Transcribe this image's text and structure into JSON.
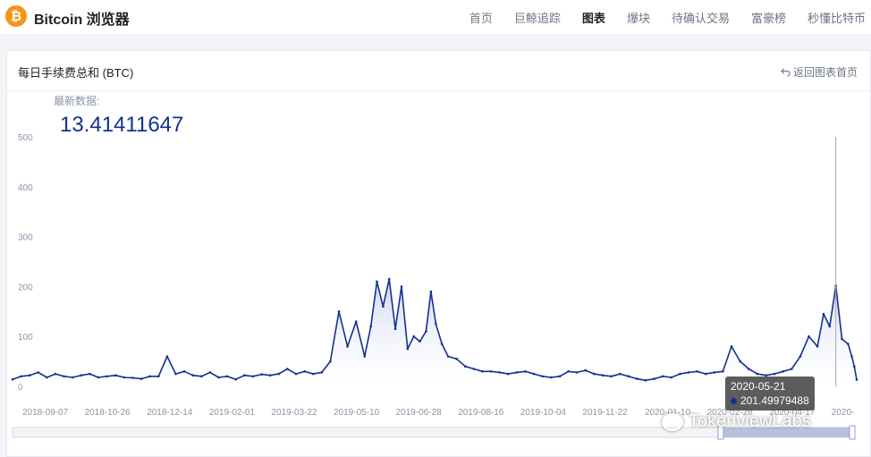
{
  "app": {
    "logo_glyph": "₿",
    "title": "Bitcoin 浏览器"
  },
  "nav": [
    "首页",
    "巨鲸追踪",
    "图表",
    "爆块",
    "待确认交易",
    "富豪榜",
    "秒懂比特币"
  ],
  "nav_active": 2,
  "card": {
    "title": "每日手续费总和 (BTC)",
    "back_label": "返回图表首页",
    "back_icon": "undo-icon"
  },
  "latest": {
    "label": "最新数据:",
    "value": "13.41411647"
  },
  "tooltip": {
    "date": "2020-05-21",
    "value": "201.49979488"
  },
  "watermark": "TokenviewLabs",
  "colors": {
    "line": "#13318f",
    "accent": "#f7931a",
    "fill": "#dfe4f7"
  },
  "chart_data": {
    "type": "area",
    "title": "",
    "xlabel": "",
    "ylabel": "",
    "ylim": [
      0,
      500
    ],
    "yticks": [
      0,
      100,
      200,
      300,
      400,
      500
    ],
    "xticks": [
      "2018-09-07",
      "2018-10-26",
      "2018-12-14",
      "2019-02-01",
      "2019-03-22",
      "2019-05-10",
      "2019-06-28",
      "2019-08-16",
      "2019-10-04",
      "2019-11-22",
      "2020-01-10",
      "2020-02-28",
      "2020-04-17",
      "2020-"
    ],
    "x_range": [
      "2018-07-20",
      "2020-06-07"
    ],
    "grid": false,
    "points": [
      [
        "2018-07-20",
        14
      ],
      [
        "2018-07-27",
        20
      ],
      [
        "2018-08-03",
        22
      ],
      [
        "2018-08-10",
        28
      ],
      [
        "2018-08-17",
        18
      ],
      [
        "2018-08-24",
        25
      ],
      [
        "2018-08-31",
        20
      ],
      [
        "2018-09-07",
        18
      ],
      [
        "2018-09-14",
        22
      ],
      [
        "2018-09-21",
        25
      ],
      [
        "2018-09-28",
        18
      ],
      [
        "2018-10-05",
        20
      ],
      [
        "2018-10-12",
        22
      ],
      [
        "2018-10-19",
        18
      ],
      [
        "2018-10-26",
        17
      ],
      [
        "2018-11-02",
        15
      ],
      [
        "2018-11-09",
        20
      ],
      [
        "2018-11-16",
        20
      ],
      [
        "2018-11-23",
        60
      ],
      [
        "2018-11-30",
        25
      ],
      [
        "2018-12-07",
        30
      ],
      [
        "2018-12-14",
        22
      ],
      [
        "2018-12-21",
        20
      ],
      [
        "2018-12-28",
        28
      ],
      [
        "2019-01-04",
        18
      ],
      [
        "2019-01-11",
        20
      ],
      [
        "2019-01-18",
        14
      ],
      [
        "2019-01-25",
        22
      ],
      [
        "2019-02-01",
        20
      ],
      [
        "2019-02-08",
        24
      ],
      [
        "2019-02-15",
        22
      ],
      [
        "2019-02-22",
        25
      ],
      [
        "2019-03-01",
        35
      ],
      [
        "2019-03-08",
        25
      ],
      [
        "2019-03-15",
        30
      ],
      [
        "2019-03-22",
        25
      ],
      [
        "2019-03-29",
        28
      ],
      [
        "2019-04-05",
        50
      ],
      [
        "2019-04-12",
        150
      ],
      [
        "2019-04-19",
        80
      ],
      [
        "2019-04-26",
        130
      ],
      [
        "2019-05-03",
        60
      ],
      [
        "2019-05-08",
        120
      ],
      [
        "2019-05-13",
        210
      ],
      [
        "2019-05-18",
        160
      ],
      [
        "2019-05-23",
        215
      ],
      [
        "2019-05-28",
        115
      ],
      [
        "2019-06-02",
        200
      ],
      [
        "2019-06-07",
        75
      ],
      [
        "2019-06-12",
        100
      ],
      [
        "2019-06-17",
        90
      ],
      [
        "2019-06-22",
        110
      ],
      [
        "2019-06-26",
        190
      ],
      [
        "2019-06-30",
        125
      ],
      [
        "2019-07-05",
        85
      ],
      [
        "2019-07-10",
        60
      ],
      [
        "2019-07-17",
        55
      ],
      [
        "2019-07-24",
        40
      ],
      [
        "2019-07-31",
        35
      ],
      [
        "2019-08-07",
        30
      ],
      [
        "2019-08-14",
        30
      ],
      [
        "2019-08-21",
        28
      ],
      [
        "2019-08-28",
        25
      ],
      [
        "2019-09-04",
        28
      ],
      [
        "2019-09-11",
        30
      ],
      [
        "2019-09-18",
        25
      ],
      [
        "2019-09-25",
        20
      ],
      [
        "2019-10-02",
        18
      ],
      [
        "2019-10-09",
        20
      ],
      [
        "2019-10-16",
        30
      ],
      [
        "2019-10-23",
        28
      ],
      [
        "2019-10-30",
        32
      ],
      [
        "2019-11-06",
        25
      ],
      [
        "2019-11-13",
        22
      ],
      [
        "2019-11-20",
        20
      ],
      [
        "2019-11-27",
        25
      ],
      [
        "2019-12-04",
        20
      ],
      [
        "2019-12-11",
        15
      ],
      [
        "2019-12-18",
        12
      ],
      [
        "2019-12-25",
        15
      ],
      [
        "2020-01-01",
        20
      ],
      [
        "2020-01-08",
        18
      ],
      [
        "2020-01-15",
        25
      ],
      [
        "2020-01-22",
        28
      ],
      [
        "2020-01-29",
        30
      ],
      [
        "2020-02-05",
        25
      ],
      [
        "2020-02-12",
        28
      ],
      [
        "2020-02-19",
        30
      ],
      [
        "2020-02-26",
        80
      ],
      [
        "2020-03-04",
        50
      ],
      [
        "2020-03-11",
        35
      ],
      [
        "2020-03-18",
        25
      ],
      [
        "2020-03-25",
        22
      ],
      [
        "2020-04-01",
        25
      ],
      [
        "2020-04-08",
        30
      ],
      [
        "2020-04-15",
        35
      ],
      [
        "2020-04-22",
        60
      ],
      [
        "2020-04-29",
        100
      ],
      [
        "2020-05-06",
        80
      ],
      [
        "2020-05-11",
        145
      ],
      [
        "2020-05-16",
        120
      ],
      [
        "2020-05-21",
        201.5
      ],
      [
        "2020-05-26",
        95
      ],
      [
        "2020-05-31",
        85
      ],
      [
        "2020-06-03",
        60
      ],
      [
        "2020-06-05",
        40
      ],
      [
        "2020-06-07",
        13.41
      ]
    ],
    "highlight": {
      "date": "2020-05-21",
      "value": 201.49979488
    }
  }
}
